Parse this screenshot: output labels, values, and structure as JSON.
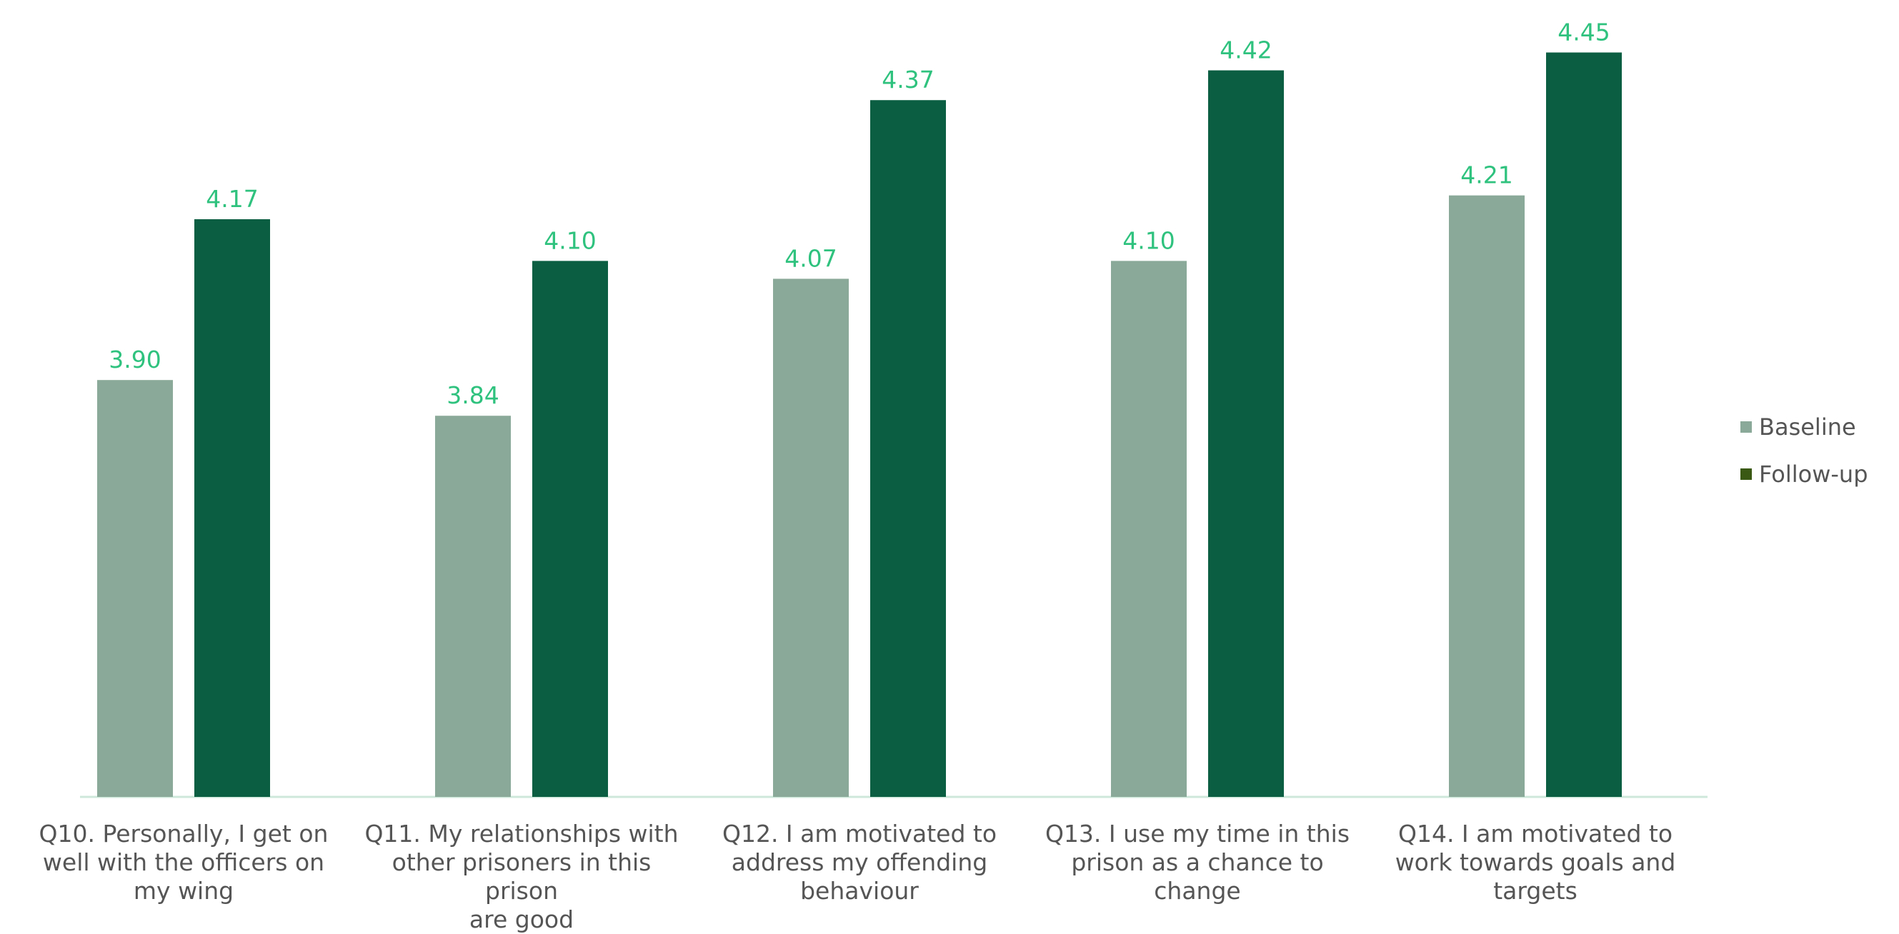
{
  "chart_data": {
    "type": "bar",
    "categories": [
      "Q10. Personally, I get on well with the officers on my wing",
      "Q11. My relationships with other prisoners in this prison are good",
      "Q12. I am motivated to address my offending behaviour",
      "Q13. I use my time in this prison as a chance to change",
      "Q14. I am motivated to work towards goals and targets"
    ],
    "category_lines": [
      [
        "Q10. Personally, I get on",
        "well with the officers on",
        "my wing"
      ],
      [
        "Q11. My relationships with",
        "other prisoners in this prison",
        "are good"
      ],
      [
        "Q12. I am motivated to",
        "address my offending",
        "behaviour"
      ],
      [
        "Q13. I use my time in this",
        "prison as a chance to",
        "change"
      ],
      [
        "Q14. I am motivated to",
        "work towards goals and",
        "targets"
      ]
    ],
    "series": [
      {
        "name": "Baseline",
        "values": [
          3.9,
          3.84,
          4.07,
          4.1,
          4.21
        ],
        "labels": [
          "3.90",
          "3.84",
          "4.07",
          "4.10",
          "4.21"
        ],
        "color": "#8aa998"
      },
      {
        "name": "Follow-up",
        "values": [
          4.17,
          4.1,
          4.37,
          4.42,
          4.45
        ],
        "labels": [
          "4.17",
          "4.10",
          "4.37",
          "4.42",
          "4.45"
        ],
        "color": "#0b5e42"
      }
    ],
    "value_label_color": "#2ec27e",
    "axis_line_color": "#cfe8dc",
    "legend_swatch_colors": [
      "#8aa998",
      "#3a5a14"
    ],
    "ylim": [
      3.2,
      4.5
    ],
    "grid": false,
    "legend_position": "right",
    "title": "",
    "xlabel": "",
    "ylabel": ""
  }
}
